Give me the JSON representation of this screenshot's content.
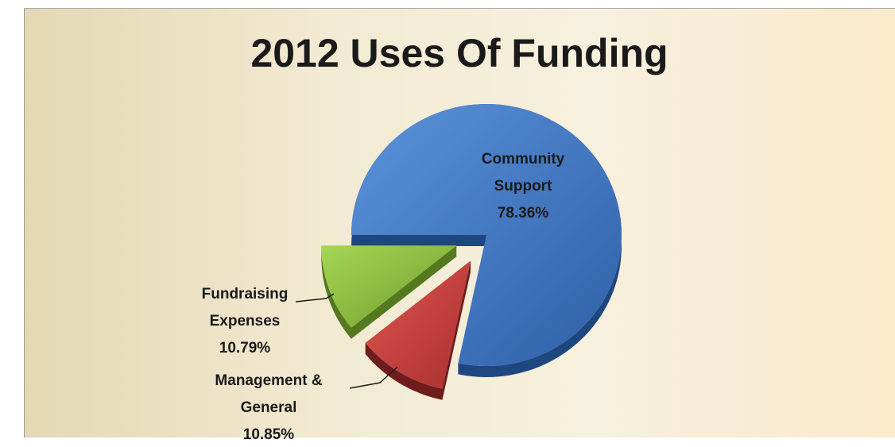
{
  "title": "2012 Uses Of Funding",
  "chart_data": {
    "type": "pie",
    "title": "2012 Uses Of Funding",
    "three_d": true,
    "exploded": true,
    "slices": [
      {
        "label_lines": [
          "Community",
          "Support"
        ],
        "value": 78.36,
        "value_label": "78.36%",
        "color": "#4a7fc8"
      },
      {
        "label_lines": [
          "Management &",
          "General"
        ],
        "value": 10.85,
        "value_label": "10.85%",
        "color": "#c8413c"
      },
      {
        "label_lines": [
          "Fundraising",
          "Expenses"
        ],
        "value": 10.79,
        "value_label": "10.79%",
        "color": "#8cc63f"
      }
    ]
  },
  "colors": {
    "community": "#4a7fc8",
    "management": "#c8413c",
    "fundraising": "#8cc63f"
  }
}
